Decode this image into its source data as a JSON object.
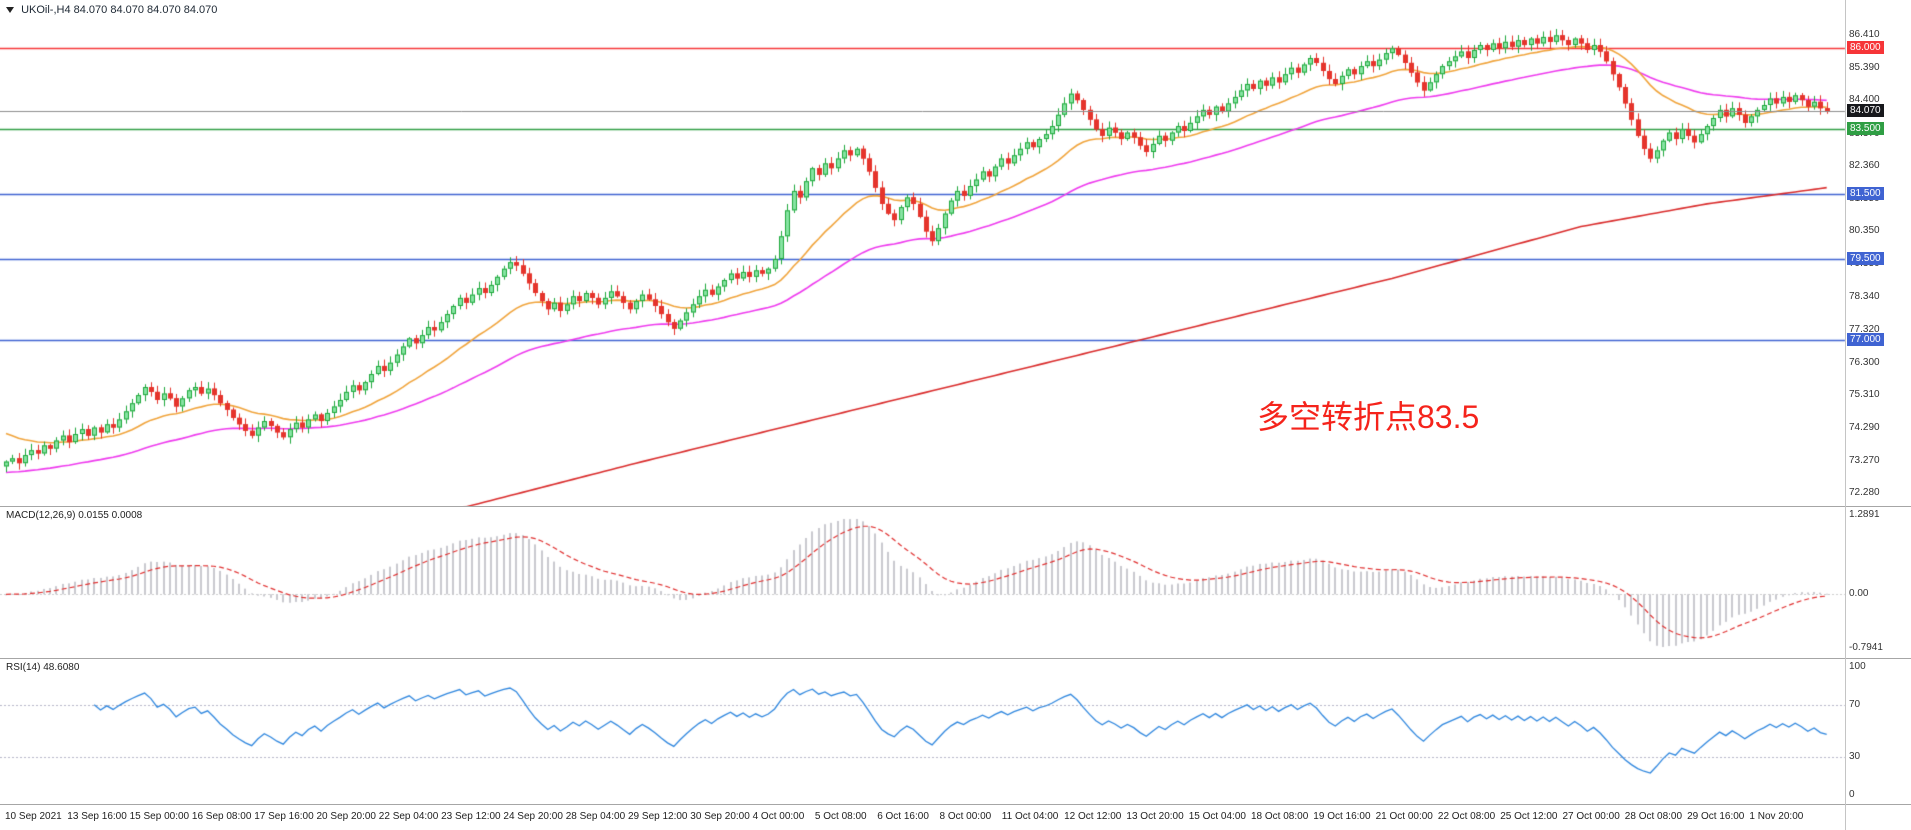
{
  "title_bar": {
    "symbol_period": "UKOil-,H4",
    "quotes": "84.070 84.070 84.070 84.070"
  },
  "annotation": {
    "text": "多空转折点83.5",
    "color": "#f5231b"
  },
  "indicators": {
    "macd": {
      "label": "MACD(12,26,9)",
      "values": "0.0155 0.0008",
      "params": [
        12,
        26,
        9
      ],
      "y_ticks": [
        "1.2891",
        "0.00",
        "-0.7941"
      ]
    },
    "rsi": {
      "label": "RSI(14)",
      "value": "48.6080",
      "period": 14,
      "y_ticks": [
        "100",
        "70",
        "30",
        "0"
      ],
      "guides": [
        70,
        30
      ]
    }
  },
  "time_axis": {
    "labels": [
      "10 Sep 2021",
      "13 Sep 16:00",
      "15 Sep 00:00",
      "16 Sep 08:00",
      "17 Sep 16:00",
      "20 Sep 20:00",
      "22 Sep 04:00",
      "23 Sep 12:00",
      "24 Sep 20:00",
      "28 Sep 04:00",
      "29 Sep 12:00",
      "30 Sep 20:00",
      "4 Oct 00:00",
      "5 Oct 08:00",
      "6 Oct 16:00",
      "8 Oct 00:00",
      "11 Oct 04:00",
      "12 Oct 12:00",
      "13 Oct 20:00",
      "15 Oct 04:00",
      "18 Oct 08:00",
      "19 Oct 16:00",
      "21 Oct 00:00",
      "22 Oct 08:00",
      "25 Oct 12:00",
      "27 Oct 00:00",
      "28 Oct 08:00",
      "29 Oct 16:00",
      "1 Nov 20:00"
    ]
  },
  "colors": {
    "background": "#ffffff",
    "up": "#1fa83c",
    "up_fill": "#86e3a2",
    "down": "#e5342c",
    "ma_fast": "#f0a43c",
    "ma_mid": "#ee3bee",
    "ma_slow": "#d92b2b",
    "macd_hist": "#c9c9cf",
    "macd_signal": "#e03030",
    "rsi_line": "#2e86de",
    "level_red": "#f63538",
    "level_green": "#2f9e44",
    "level_blue": "#3f63d2",
    "current_line": "#8c8c8c",
    "current_badge": "#17181c",
    "guide": "#b6b6c8"
  },
  "chart_data": {
    "type": "candlestick",
    "symbol": "UKOil-",
    "timeframe": "H4",
    "last_quote": "84.070",
    "y_range": [
      72.28,
      86.41
    ],
    "y_ticks": [
      "86.410",
      "85.390",
      "84.400",
      "83.370",
      "82.360",
      "81.350",
      "80.350",
      "79.330",
      "78.340",
      "77.320",
      "76.300",
      "75.310",
      "74.290",
      "73.270",
      "72.280"
    ],
    "first_open": 73.1,
    "closes": [
      73.25,
      73.35,
      73.2,
      73.45,
      73.6,
      73.5,
      73.75,
      73.65,
      73.9,
      74.05,
      73.85,
      74.1,
      74.25,
      74.05,
      74.3,
      74.15,
      74.4,
      74.3,
      74.55,
      74.8,
      75.05,
      75.3,
      75.55,
      75.4,
      75.15,
      75.35,
      75.2,
      74.95,
      75.2,
      75.45,
      75.55,
      75.35,
      75.5,
      75.3,
      75.05,
      74.85,
      74.6,
      74.4,
      74.2,
      74.05,
      74.3,
      74.5,
      74.35,
      74.15,
      74.0,
      74.25,
      74.45,
      74.3,
      74.55,
      74.7,
      74.5,
      74.75,
      74.95,
      75.15,
      75.4,
      75.6,
      75.45,
      75.7,
      75.95,
      76.2,
      76.05,
      76.3,
      76.55,
      76.8,
      77.05,
      76.9,
      77.15,
      77.4,
      77.3,
      77.55,
      77.8,
      78.05,
      78.3,
      78.15,
      78.4,
      78.6,
      78.45,
      78.7,
      78.95,
      79.2,
      79.4,
      79.3,
      79.05,
      78.75,
      78.45,
      78.2,
      77.95,
      78.15,
      77.9,
      78.1,
      78.35,
      78.2,
      78.45,
      78.3,
      78.1,
      78.3,
      78.5,
      78.35,
      78.15,
      77.95,
      78.2,
      78.4,
      78.25,
      78.05,
      77.8,
      77.55,
      77.35,
      77.6,
      77.85,
      78.1,
      78.35,
      78.55,
      78.4,
      78.65,
      78.85,
      79.05,
      78.9,
      79.1,
      78.95,
      79.15,
      79.05,
      79.2,
      79.5,
      80.2,
      81.0,
      81.6,
      81.4,
      81.9,
      82.3,
      82.1,
      82.45,
      82.3,
      82.6,
      82.85,
      82.7,
      82.9,
      82.6,
      82.2,
      81.7,
      81.2,
      80.9,
      80.7,
      81.1,
      81.4,
      81.2,
      80.8,
      80.35,
      80.05,
      80.45,
      80.9,
      81.3,
      81.6,
      81.45,
      81.75,
      81.95,
      82.2,
      82.05,
      82.35,
      82.6,
      82.45,
      82.7,
      82.9,
      83.1,
      82.95,
      83.2,
      83.35,
      83.6,
      83.95,
      84.3,
      84.6,
      84.4,
      84.1,
      83.8,
      83.5,
      83.3,
      83.55,
      83.4,
      83.2,
      83.4,
      83.25,
      83.0,
      82.8,
      83.05,
      83.3,
      83.15,
      83.4,
      83.6,
      83.45,
      83.7,
      83.9,
      84.1,
      83.95,
      84.2,
      84.05,
      84.3,
      84.5,
      84.7,
      84.9,
      84.75,
      85.0,
      84.85,
      85.1,
      84.95,
      85.2,
      85.4,
      85.25,
      85.5,
      85.7,
      85.55,
      85.3,
      85.05,
      84.9,
      85.15,
      85.35,
      85.2,
      85.45,
      85.6,
      85.45,
      85.65,
      85.85,
      86.0,
      85.8,
      85.55,
      85.25,
      84.95,
      84.7,
      84.95,
      85.2,
      85.45,
      85.6,
      85.75,
      85.9,
      85.7,
      85.95,
      86.1,
      85.95,
      86.15,
      86.0,
      86.2,
      86.05,
      86.25,
      86.1,
      86.3,
      86.15,
      86.35,
      86.2,
      86.4,
      86.25,
      86.1,
      86.3,
      86.15,
      85.95,
      86.1,
      85.9,
      85.6,
      85.2,
      84.8,
      84.3,
      83.8,
      83.3,
      82.9,
      82.6,
      82.85,
      83.15,
      83.4,
      83.2,
      83.5,
      83.3,
      83.1,
      83.35,
      83.6,
      83.85,
      84.1,
      83.9,
      84.15,
      83.95,
      83.7,
      83.9,
      84.1,
      84.25,
      84.45,
      84.3,
      84.5,
      84.35,
      84.55,
      84.4,
      84.2,
      84.35,
      84.15,
      84.07
    ],
    "levels": [
      {
        "price": 86.0,
        "label": "86.000",
        "color": "#f63538",
        "style": "level"
      },
      {
        "price": 84.07,
        "label": "84.070",
        "color": "#8c8c8c",
        "badge": "#17181c",
        "style": "current"
      },
      {
        "price": 83.5,
        "label": "83.500",
        "color": "#2f9e44",
        "style": "level"
      },
      {
        "price": 81.5,
        "label": "81.500",
        "color": "#3f63d2",
        "style": "level"
      },
      {
        "price": 79.5,
        "label": "79.500",
        "color": "#3f63d2",
        "style": "level"
      },
      {
        "price": 77.0,
        "label": "77.000",
        "color": "#3f63d2",
        "style": "level"
      }
    ],
    "moving_averages": [
      {
        "name": "ma-fast",
        "color": "#f0a43c",
        "period": 21,
        "seed": 74.2
      },
      {
        "name": "ma-mid",
        "color": "#ee3bee",
        "period": 55,
        "seed": 72.9
      },
      {
        "name": "ma-slow",
        "color": "#d92b2b",
        "keypoints": [
          [
            0,
            68.4
          ],
          [
            60,
            71.2
          ],
          [
            100,
            73.2
          ],
          [
            140,
            75.1
          ],
          [
            180,
            77.0
          ],
          [
            220,
            78.9
          ],
          [
            250,
            80.5
          ],
          [
            270,
            81.2
          ],
          [
            289,
            81.7
          ]
        ]
      }
    ]
  }
}
